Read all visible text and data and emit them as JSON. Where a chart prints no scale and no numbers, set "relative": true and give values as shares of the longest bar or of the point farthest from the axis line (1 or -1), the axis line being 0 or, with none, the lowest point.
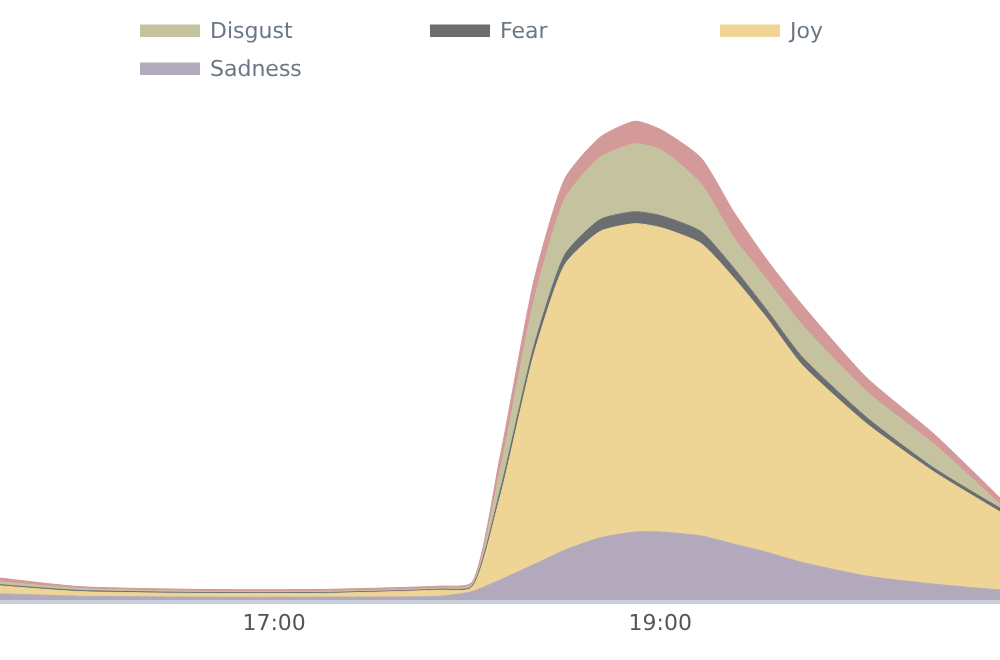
{
  "chart_data": {
    "type": "area",
    "stacked": true,
    "relative": true,
    "legend": "top",
    "x": [
      15.58,
      15.99,
      16.62,
      17.24,
      17.86,
      18.02,
      18.17,
      18.35,
      18.51,
      18.69,
      18.87,
      19.0,
      19.21,
      19.38,
      19.55,
      19.73,
      20.07,
      20.42,
      20.76
    ],
    "xlim": [
      15.58,
      20.76
    ],
    "xticks": [
      {
        "value": 17,
        "label": "17:00"
      },
      {
        "value": 19,
        "label": "19:00"
      }
    ],
    "series": [
      {
        "name": "Sadness",
        "color": "#b3a9bc",
        "values": [
          0.013,
          0.008,
          0.006,
          0.006,
          0.008,
          0.017,
          0.042,
          0.075,
          0.105,
          0.13,
          0.142,
          0.142,
          0.134,
          0.117,
          0.1,
          0.079,
          0.05,
          0.033,
          0.021
        ]
      },
      {
        "name": "Joy",
        "color": "#efd595",
        "values": [
          0.017,
          0.01,
          0.008,
          0.008,
          0.013,
          0.008,
          0.172,
          0.444,
          0.598,
          0.64,
          0.644,
          0.636,
          0.611,
          0.556,
          0.49,
          0.414,
          0.318,
          0.234,
          0.163
        ]
      },
      {
        "name": "Fear",
        "color": "#6b6e70",
        "values": [
          0.002,
          0.002,
          0.002,
          0.002,
          0.002,
          0.002,
          0.013,
          0.017,
          0.021,
          0.025,
          0.025,
          0.025,
          0.025,
          0.021,
          0.017,
          0.017,
          0.013,
          0.008,
          0.008
        ]
      },
      {
        "name": "Disgust",
        "color": "#c4c29f",
        "values": [
          0.006,
          0.004,
          0.002,
          0.002,
          0.002,
          0.004,
          0.042,
          0.096,
          0.117,
          0.13,
          0.142,
          0.138,
          0.1,
          0.063,
          0.063,
          0.067,
          0.054,
          0.05,
          0.008
        ]
      },
      {
        "color": "#d49a9a",
        "values": [
          0.008,
          0.004,
          0.004,
          0.004,
          0.004,
          0.004,
          0.029,
          0.042,
          0.042,
          0.042,
          0.047,
          0.042,
          0.054,
          0.054,
          0.042,
          0.042,
          0.029,
          0.021,
          0.013
        ]
      }
    ]
  }
}
